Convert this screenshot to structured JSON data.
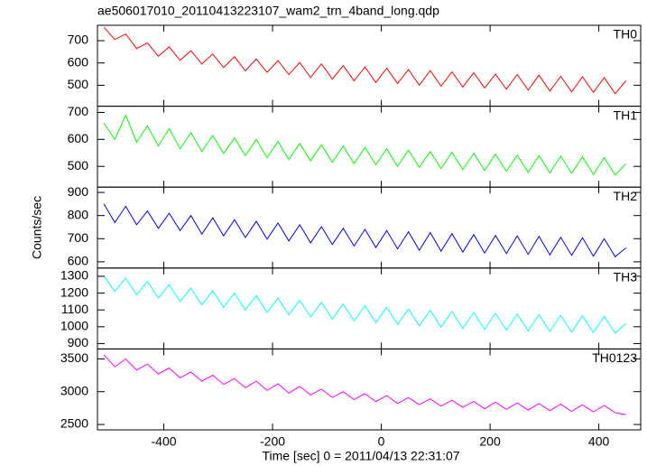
{
  "chart_data": {
    "type": "line",
    "title": "ae506017010_20110413223107_wam2_trn_4band_long.qdp",
    "xlabel": "Time [sec] 0 = 2011/04/13 22:31:07",
    "ylabel": "Counts/sec",
    "xlim": [
      -522,
      477
    ],
    "xticks": [
      -400,
      -200,
      0,
      200,
      400
    ],
    "x": [
      -510,
      -490,
      -470,
      -450,
      -430,
      -410,
      -390,
      -370,
      -350,
      -330,
      -310,
      -290,
      -270,
      -250,
      -230,
      -210,
      -190,
      -170,
      -150,
      -130,
      -110,
      -90,
      -70,
      -50,
      -30,
      -10,
      10,
      30,
      50,
      70,
      90,
      110,
      130,
      150,
      170,
      190,
      210,
      230,
      250,
      270,
      290,
      310,
      330,
      350,
      370,
      390,
      410,
      430,
      450
    ],
    "series": [
      {
        "name": "TH0",
        "color": "#ff0000",
        "ylim": [
          406,
          769
        ],
        "yticks": [
          500,
          600,
          700
        ],
        "values": [
          760,
          705,
          730,
          665,
          690,
          630,
          672,
          612,
          655,
          595,
          640,
          580,
          628,
          565,
          618,
          558,
          610,
          548,
          602,
          535,
          596,
          528,
          588,
          520,
          582,
          512,
          576,
          508,
          570,
          500,
          566,
          496,
          560,
          492,
          556,
          488,
          550,
          482,
          548,
          478,
          545,
          474,
          540,
          470,
          538,
          468,
          534,
          462,
          520
        ]
      },
      {
        "name": "TH1",
        "color": "#00ff00",
        "ylim": [
          423,
          723
        ],
        "yticks": [
          500,
          600,
          700
        ],
        "values": [
          660,
          600,
          690,
          590,
          650,
          575,
          640,
          565,
          625,
          555,
          615,
          548,
          605,
          540,
          600,
          532,
          592,
          525,
          585,
          520,
          580,
          515,
          575,
          510,
          570,
          506,
          565,
          500,
          560,
          496,
          555,
          492,
          552,
          488,
          548,
          485,
          545,
          482,
          542,
          478,
          540,
          476,
          538,
          474,
          535,
          470,
          532,
          468,
          510
        ]
      },
      {
        "name": "TH2",
        "color": "#0000ff",
        "ylim": [
          573,
          923
        ],
        "yticks": [
          600,
          700,
          800,
          900
        ],
        "values": [
          850,
          770,
          840,
          760,
          820,
          745,
          810,
          735,
          800,
          720,
          790,
          712,
          782,
          705,
          775,
          698,
          768,
          690,
          760,
          682,
          752,
          675,
          745,
          668,
          740,
          662,
          735,
          656,
          730,
          650,
          726,
          646,
          722,
          642,
          718,
          638,
          714,
          636,
          712,
          632,
          710,
          630,
          706,
          628,
          704,
          624,
          700,
          622,
          660
        ]
      },
      {
        "name": "TH3",
        "color": "#00ffff",
        "ylim": [
          868,
          1349
        ],
        "yticks": [
          900,
          1000,
          1100,
          1200,
          1300
        ],
        "values": [
          1300,
          1210,
          1290,
          1190,
          1270,
          1170,
          1250,
          1150,
          1230,
          1130,
          1215,
          1115,
          1200,
          1100,
          1185,
          1085,
          1170,
          1070,
          1158,
          1058,
          1145,
          1045,
          1135,
          1035,
          1125,
          1025,
          1115,
          1015,
          1105,
          1005,
          1098,
          998,
          1090,
          990,
          1085,
          985,
          1080,
          980,
          1075,
          975,
          1072,
          972,
          1068,
          968,
          1065,
          965,
          1062,
          962,
          1020
        ]
      },
      {
        "name": "TH0123",
        "color": "#ff00ff",
        "ylim": [
          2418,
          3651
        ],
        "yticks": [
          2500,
          3000,
          3500
        ],
        "values": [
          3560,
          3380,
          3500,
          3330,
          3420,
          3270,
          3360,
          3210,
          3300,
          3160,
          3250,
          3110,
          3200,
          3060,
          3160,
          3020,
          3120,
          2980,
          3080,
          2950,
          3040,
          2910,
          3000,
          2880,
          2970,
          2850,
          2940,
          2820,
          2910,
          2800,
          2890,
          2780,
          2870,
          2760,
          2850,
          2740,
          2840,
          2730,
          2830,
          2720,
          2820,
          2710,
          2810,
          2700,
          2800,
          2690,
          2790,
          2680,
          2650
        ]
      }
    ]
  }
}
